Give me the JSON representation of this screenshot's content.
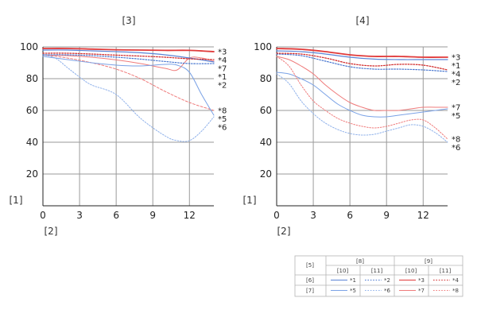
{
  "chart_data": [
    {
      "type": "line",
      "title": "[3]",
      "ylabel_ref": "[1]",
      "xlabel_ref": "[2]",
      "xlim": [
        0,
        14
      ],
      "ylim": [
        0,
        100
      ],
      "xticks": [
        "0",
        "3",
        "6",
        "9",
        "12"
      ],
      "yticks": [
        "20",
        "40",
        "60",
        "80",
        "100"
      ],
      "series": [
        {
          "name": "*3",
          "color": "#e03a3a",
          "dash": "solid",
          "width": 1.8,
          "x": [
            0,
            2,
            4,
            6,
            8,
            10,
            12,
            14
          ],
          "y": [
            99,
            99,
            98.6,
            98.2,
            98,
            97.8,
            97.8,
            97
          ]
        },
        {
          "name": "*4",
          "color": "#d23030",
          "dash": "dot",
          "width": 1.3,
          "x": [
            0,
            2,
            4,
            6,
            8,
            10,
            12,
            14
          ],
          "y": [
            96,
            96,
            95.5,
            94.8,
            94.2,
            93.5,
            92.5,
            92
          ]
        },
        {
          "name": "*1",
          "color": "#5b84d6",
          "dash": "solid",
          "width": 1.2,
          "x": [
            0,
            2,
            4,
            6,
            8,
            10,
            12,
            14
          ],
          "y": [
            98,
            98,
            97.5,
            97,
            96.3,
            95,
            93,
            90.5
          ]
        },
        {
          "name": "*2",
          "color": "#4a78d0",
          "dash": "dot",
          "width": 1.2,
          "x": [
            0,
            2,
            4,
            6,
            8,
            10,
            12,
            14
          ],
          "y": [
            95,
            95,
            94.5,
            93.5,
            92.3,
            90.8,
            89.5,
            89.5
          ]
        },
        {
          "name": "*7",
          "color": "#ef7b7b",
          "dash": "solid",
          "width": 1,
          "x": [
            0,
            2,
            4,
            6,
            8,
            10,
            11,
            12,
            13,
            14
          ],
          "y": [
            95,
            94.5,
            93.5,
            91.8,
            89.5,
            86.5,
            85.5,
            93,
            93,
            91
          ]
        },
        {
          "name": "*8",
          "color": "#ef7b7b",
          "dash": "dash",
          "width": 1,
          "x": [
            0,
            2,
            4,
            6,
            8,
            10,
            12,
            14
          ],
          "y": [
            95,
            93,
            90,
            86,
            80,
            72,
            65,
            60
          ]
        },
        {
          "name": "*5",
          "color": "#7aa2e6",
          "dash": "solid",
          "width": 1,
          "x": [
            0,
            2,
            4,
            6,
            8,
            10,
            11,
            12,
            13,
            14
          ],
          "y": [
            94,
            92,
            90,
            88.5,
            88,
            89,
            88.5,
            84,
            70,
            57
          ]
        },
        {
          "name": "*6",
          "color": "#8fb1ea",
          "dash": "dot",
          "width": 1,
          "x": [
            0,
            1,
            2,
            3,
            4,
            6,
            8,
            10,
            11,
            12,
            13,
            14
          ],
          "y": [
            95,
            93,
            87,
            81,
            76,
            70,
            55,
            44,
            41,
            41,
            47,
            56
          ]
        }
      ]
    },
    {
      "type": "line",
      "title": "[4]",
      "ylabel_ref": "[1]",
      "xlabel_ref": "[2]",
      "xlim": [
        0,
        14
      ],
      "ylim": [
        0,
        100
      ],
      "xticks": [
        "0",
        "3",
        "6",
        "9",
        "12"
      ],
      "yticks": [
        "20",
        "40",
        "60",
        "80",
        "100"
      ],
      "series": [
        {
          "name": "*3",
          "color": "#e03a3a",
          "dash": "solid",
          "width": 1.8,
          "x": [
            0,
            2,
            4,
            6,
            8,
            10,
            12,
            14
          ],
          "y": [
            99,
            98.5,
            97,
            95,
            94,
            94,
            93.5,
            93.5
          ]
        },
        {
          "name": "*1",
          "color": "#5b84d6",
          "dash": "solid",
          "width": 1.2,
          "x": [
            0,
            2,
            4,
            6,
            8,
            10,
            12,
            14
          ],
          "y": [
            97.5,
            97,
            95.5,
            93.5,
            92.3,
            92,
            92,
            92
          ]
        },
        {
          "name": "*4",
          "color": "#d23030",
          "dash": "dot",
          "width": 1.3,
          "x": [
            0,
            2,
            4,
            6,
            8,
            10,
            12,
            14
          ],
          "y": [
            96,
            95.5,
            93,
            89.5,
            88,
            89,
            88.5,
            85.5
          ]
        },
        {
          "name": "*2",
          "color": "#4a78d0",
          "dash": "dot",
          "width": 1.2,
          "x": [
            0,
            2,
            4,
            6,
            8,
            10,
            12,
            14
          ],
          "y": [
            95.5,
            94.5,
            91,
            87.5,
            86,
            86,
            85.5,
            84.5
          ]
        },
        {
          "name": "*7",
          "color": "#ef7b7b",
          "dash": "solid",
          "width": 1,
          "x": [
            0,
            1,
            2,
            3,
            4,
            5,
            6,
            7,
            8,
            9,
            10,
            11,
            12,
            13,
            14
          ],
          "y": [
            94,
            92,
            88,
            83,
            76,
            70,
            65,
            62,
            60,
            60,
            60,
            61,
            62,
            62,
            62
          ]
        },
        {
          "name": "*5",
          "color": "#7aa2e6",
          "dash": "solid",
          "width": 1,
          "x": [
            0,
            1,
            2,
            3,
            4,
            5,
            6,
            7,
            8,
            9,
            10,
            11,
            12,
            13,
            14
          ],
          "y": [
            84,
            83,
            80,
            76,
            70,
            64,
            60,
            57,
            56,
            56,
            57,
            58,
            59,
            60,
            61
          ]
        },
        {
          "name": "*8",
          "color": "#ef7b7b",
          "dash": "dot",
          "width": 1,
          "x": [
            0,
            1,
            2,
            3,
            4,
            5,
            6,
            7,
            8,
            9,
            10,
            11,
            12,
            13,
            14
          ],
          "y": [
            94,
            88,
            76,
            66,
            60,
            55,
            52,
            50,
            49,
            50,
            52,
            54,
            54,
            49,
            42
          ]
        },
        {
          "name": "*6",
          "color": "#8fb1ea",
          "dash": "dot",
          "width": 1,
          "x": [
            0,
            1,
            2,
            3,
            4,
            5,
            6,
            7,
            8,
            9,
            10,
            11,
            12,
            13,
            14
          ],
          "y": [
            83,
            77,
            66,
            58,
            52,
            48,
            45.5,
            44.5,
            45,
            47,
            49,
            51,
            50,
            46,
            40
          ]
        }
      ]
    }
  ],
  "legend_table": {
    "row_header": "[5]",
    "group_headers": [
      "[8]",
      "[9]"
    ],
    "sub_headers": [
      "[10]",
      "[11]",
      "[10]",
      "[11]"
    ],
    "rows": [
      {
        "label": "[6]",
        "cells": [
          {
            "text": "*1",
            "color": "#5b84d6",
            "dash": "solid"
          },
          {
            "text": "*2",
            "color": "#4a78d0",
            "dash": "dot"
          },
          {
            "text": "*3",
            "color": "#e03a3a",
            "dash": "solid"
          },
          {
            "text": "*4",
            "color": "#d23030",
            "dash": "dot"
          }
        ]
      },
      {
        "label": "[7]",
        "cells": [
          {
            "text": "*5",
            "color": "#7aa2e6",
            "dash": "solid"
          },
          {
            "text": "*6",
            "color": "#8fb1ea",
            "dash": "dot"
          },
          {
            "text": "*7",
            "color": "#ef7b7b",
            "dash": "solid"
          },
          {
            "text": "*8",
            "color": "#ef7b7b",
            "dash": "dot"
          }
        ]
      }
    ]
  }
}
